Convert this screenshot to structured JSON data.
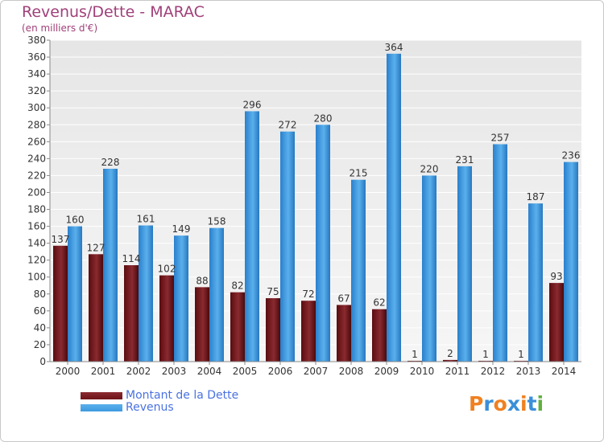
{
  "header": {
    "title": "Revenus/Dette - MARAC",
    "subtitle": "(en milliers d'€)"
  },
  "chart_data": {
    "type": "bar",
    "title": "Revenus/Dette - MARAC",
    "ylabel": "(en milliers d'€)",
    "xlabel": "",
    "categories": [
      "2000",
      "2001",
      "2002",
      "2003",
      "2004",
      "2005",
      "2006",
      "2007",
      "2008",
      "2009",
      "2010",
      "2011",
      "2012",
      "2013",
      "2014"
    ],
    "series": [
      {
        "name": "Montant de la Dette",
        "color": "#6e1418",
        "values": [
          137,
          127,
          114,
          102,
          88,
          82,
          75,
          72,
          67,
          62,
          1,
          2,
          1,
          1,
          93
        ]
      },
      {
        "name": "Revenus",
        "color": "#3d9ae0",
        "values": [
          160,
          228,
          161,
          149,
          158,
          296,
          272,
          280,
          215,
          364,
          220,
          231,
          257,
          187,
          236
        ]
      }
    ],
    "ylim": [
      0,
      380
    ],
    "yticks": [
      0,
      20,
      40,
      60,
      80,
      100,
      120,
      140,
      160,
      180,
      200,
      220,
      240,
      260,
      280,
      300,
      320,
      340,
      360,
      380
    ],
    "grid": true,
    "legend_position": "bottom-left"
  },
  "legend": {
    "items": [
      {
        "label": "Montant de la Dette",
        "color": "#6e1418"
      },
      {
        "label": "Revenus",
        "color": "#3d9ae0"
      }
    ]
  },
  "brand": {
    "letters": [
      "P",
      "r",
      "o",
      "x",
      "i",
      "t",
      "i"
    ],
    "colors": [
      "#f08020",
      "#3a8fd8",
      "#f08020",
      "#3a8fd8",
      "#f08020",
      "#3a8fd8",
      "#60b040"
    ]
  }
}
